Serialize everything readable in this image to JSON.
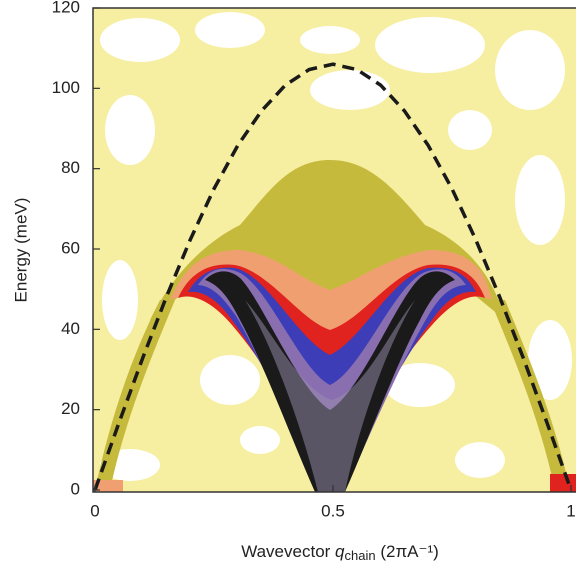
{
  "chart_data": {
    "type": "contour",
    "xlabel": {
      "text": "Wavevector",
      "symbol": "q",
      "subscript": "chain",
      "unit": "(2πA⁻¹)"
    },
    "ylabel": "Energy (meV)",
    "xlim": [
      0,
      1
    ],
    "ylim": [
      0,
      120
    ],
    "xticks": [
      0,
      0.5,
      1
    ],
    "yticks": [
      0,
      20,
      40,
      60,
      80,
      100,
      120
    ],
    "series": [
      {
        "color": "#1a1a1a",
        "line_style": "dashed",
        "x": [
          0,
          0.05,
          0.1,
          0.15,
          0.2,
          0.25,
          0.3,
          0.35,
          0.4,
          0.45,
          0.5,
          0.55,
          0.6,
          0.65,
          0.7,
          0.75,
          0.8,
          0.85,
          0.9,
          0.95,
          1
        ],
        "values": [
          0,
          16.6,
          32.8,
          48.1,
          62.3,
          75.0,
          85.8,
          94.4,
          100.8,
          104.7,
          106,
          104.7,
          100.8,
          94.4,
          85.8,
          75.0,
          62.3,
          48.1,
          32.8,
          16.6,
          0
        ]
      }
    ]
  }
}
